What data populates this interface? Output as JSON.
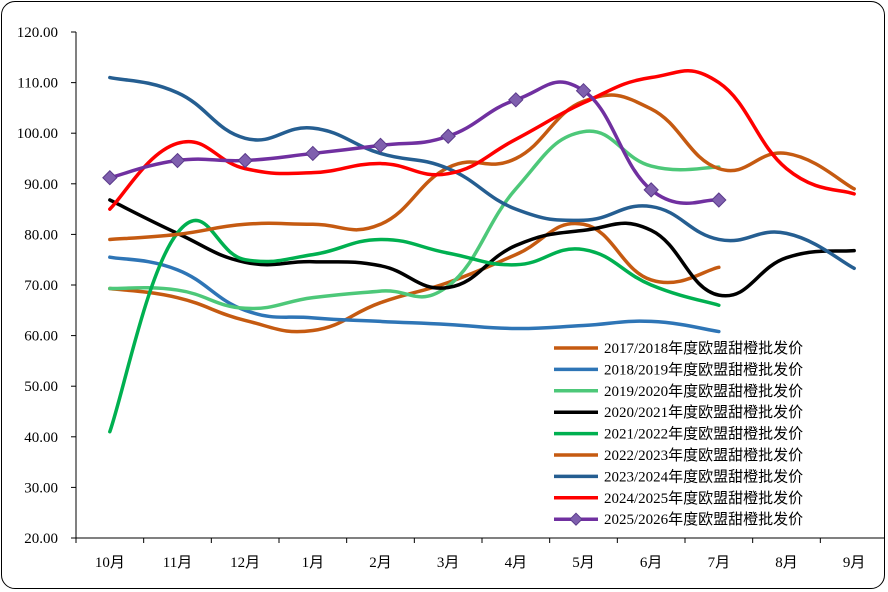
{
  "chart_data": {
    "type": "line",
    "smooth": true,
    "categories": [
      "10月",
      "11月",
      "12月",
      "1月",
      "2月",
      "3月",
      "4月",
      "5月",
      "6月",
      "7月",
      "8月",
      "9月"
    ],
    "ylim": [
      20,
      120
    ],
    "yticks": [
      "20.00",
      "30.00",
      "40.00",
      "50.00",
      "60.00",
      "70.00",
      "80.00",
      "90.00",
      "100.00",
      "110.00",
      "120.00"
    ],
    "grid": false,
    "legend_position": "bottom-right",
    "series": [
      {
        "name": "2017/2018年度欧盟甜橙批发价",
        "color": "#c55a11",
        "marker": "none",
        "values": [
          69.3,
          67.5,
          63.0,
          61.0,
          66.5,
          70.5,
          76.0,
          82.0,
          71.0,
          73.5,
          null,
          null
        ]
      },
      {
        "name": "2018/2019年度欧盟甜橙批发价",
        "color": "#2e75b6",
        "marker": "none",
        "values": [
          75.5,
          73.0,
          65.0,
          63.5,
          62.8,
          62.2,
          61.4,
          62.0,
          62.8,
          60.8,
          null,
          null
        ]
      },
      {
        "name": "2019/2020年度欧盟甜橙批发价",
        "color": "#4dc879",
        "marker": "none",
        "values": [
          69.3,
          69.0,
          65.4,
          67.5,
          68.8,
          69.8,
          89.0,
          100.3,
          93.5,
          93.3,
          null,
          null
        ]
      },
      {
        "name": "2020/2021年度欧盟甜橙批发价",
        "color": "#000000",
        "marker": "none",
        "values": [
          86.8,
          80.2,
          74.5,
          74.6,
          73.8,
          69.5,
          77.8,
          80.8,
          80.8,
          68.0,
          75.4,
          76.8
        ]
      },
      {
        "name": "2021/2022年度欧盟甜橙批发价",
        "color": "#00b050",
        "marker": "none",
        "values": [
          41.0,
          80.3,
          75.0,
          76.0,
          79.0,
          76.3,
          74.0,
          77.0,
          70.0,
          66.0,
          null,
          null
        ]
      },
      {
        "name": "2022/2023年度欧盟甜橙批发价",
        "color": "#c55a11",
        "marker": "none",
        "values": [
          79.0,
          80.0,
          82.0,
          82.0,
          82.0,
          93.2,
          95.0,
          106.3,
          104.8,
          93.0,
          96.0,
          89.0
        ]
      },
      {
        "name": "2023/2024年度欧盟甜橙批发价",
        "color": "#255e91",
        "marker": "none",
        "values": [
          111.0,
          108.0,
          99.0,
          101.0,
          96.0,
          93.0,
          85.0,
          82.8,
          85.5,
          79.0,
          80.2,
          73.3
        ]
      },
      {
        "name": "2024/2025年度欧盟甜橙批发价",
        "color": "#ff0000",
        "marker": "none",
        "values": [
          85.0,
          98.0,
          93.0,
          92.2,
          94.0,
          92.0,
          98.8,
          106.0,
          111.0,
          110.0,
          93.0,
          88.0
        ]
      },
      {
        "name": "2025/2026年度欧盟甜橙批发价",
        "color": "#7030a0",
        "marker": "diamond",
        "values": [
          91.2,
          94.6,
          94.6,
          96.0,
          97.6,
          99.4,
          106.6,
          108.4,
          88.8,
          86.8,
          null,
          null
        ]
      }
    ]
  }
}
